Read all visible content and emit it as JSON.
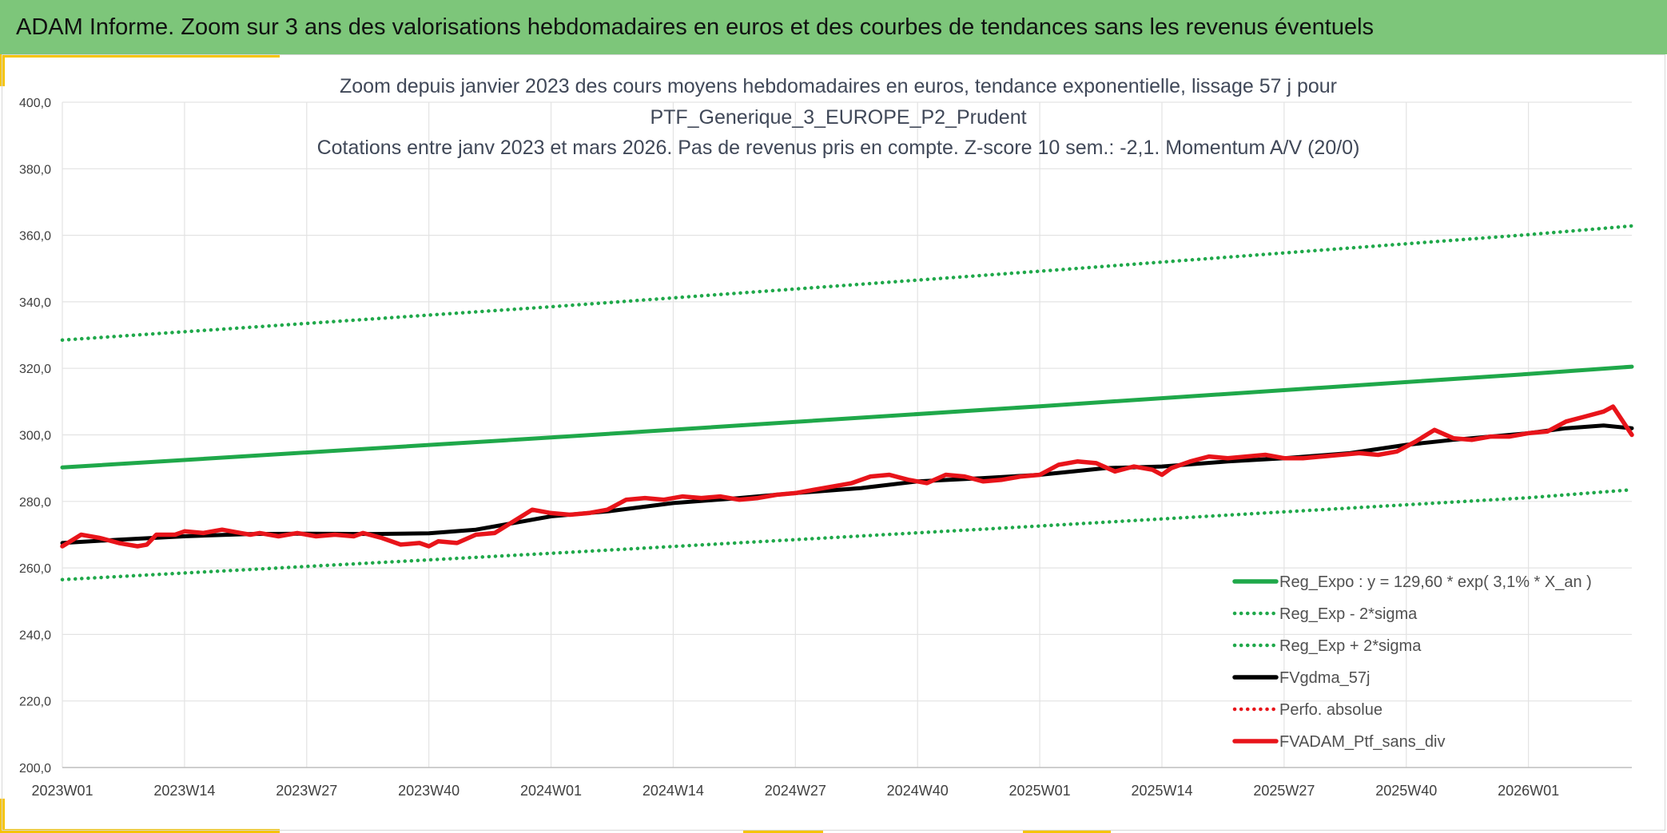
{
  "header": {
    "title": "ADAM Informe. Zoom sur 3 ans des valorisations hebdomadaires en euros et des courbes de tendances sans les revenus éventuels"
  },
  "colors": {
    "banner": "#7dc67a",
    "accent": "#f5c400",
    "trend_green": "#1fa84a",
    "band_green": "#1fa84a",
    "smooth_black": "#000000",
    "price_red": "#e8141a",
    "grid": "#e3e3e3"
  },
  "chart_data": {
    "type": "line",
    "title_lines": [
      "Zoom depuis janvier 2023 des cours moyens hebdomadaires en euros, tendance exponentielle, lissage 57 j pour",
      "PTF_Generique_3_EUROPE_P2_Prudent",
      "Cotations entre janv 2023 et mars 2026. Pas de revenus pris en compte. Z-score 10 sem.: -2,1. Momentum A/V (20/0)"
    ],
    "x_axis": {
      "week_start_index": 0,
      "week_end_index": 167,
      "tick_labels": [
        "2023W01",
        "2023W14",
        "2023W27",
        "2023W40",
        "2024W01",
        "2024W14",
        "2024W27",
        "2024W40",
        "2025W01",
        "2025W14",
        "2025W27",
        "2025W40",
        "2026W01"
      ],
      "tick_week_index": [
        0,
        13,
        26,
        39,
        52,
        65,
        78,
        91,
        104,
        117,
        130,
        143,
        156
      ]
    },
    "y_axis": {
      "ylim": [
        200,
        400
      ],
      "tick_values": [
        200,
        220,
        240,
        260,
        280,
        300,
        320,
        340,
        360,
        380,
        400
      ],
      "tick_labels": [
        "200,0",
        "220,0",
        "240,0",
        "260,0",
        "280,0",
        "300,0",
        "320,0",
        "340,0",
        "360,0",
        "380,0",
        "400,0"
      ]
    },
    "legend": {
      "position": "bottom-right",
      "entries": [
        {
          "name": "Reg_Expo : y = 129,60 * exp( 3,1% *  X_an )",
          "style": "solid",
          "color": "#1fa84a"
        },
        {
          "name": "Reg_Exp - 2*sigma",
          "style": "dotted",
          "color": "#1fa84a"
        },
        {
          "name": "Reg_Exp + 2*sigma",
          "style": "dotted",
          "color": "#1fa84a"
        },
        {
          "name": "FVgdma_57j",
          "style": "solid",
          "color": "#000000"
        },
        {
          "name": "Perfo. absolue",
          "style": "dotted",
          "color": "#e8141a"
        },
        {
          "name": "FVADAM_Ptf_sans_div",
          "style": "solid",
          "color": "#e8141a"
        }
      ]
    },
    "series": [
      {
        "name": "Reg_Expo : y = 129,60 * exp( 3,1% *  X_an )",
        "x": [
          0,
          52,
          104,
          156,
          167
        ],
        "values": [
          290.2,
          299.2,
          308.6,
          318.3,
          320.5
        ]
      },
      {
        "name": "Reg_Exp - 2*sigma",
        "x": [
          0,
          52,
          104,
          156,
          167
        ],
        "values": [
          256.5,
          264.4,
          272.6,
          281.1,
          283.5
        ]
      },
      {
        "name": "Reg_Exp + 2*sigma",
        "x": [
          0,
          52,
          104,
          156,
          167
        ],
        "values": [
          328.5,
          338.5,
          349.2,
          360.2,
          362.8
        ]
      },
      {
        "name": "FVgdma_57j",
        "x": [
          0,
          6,
          13,
          20,
          26,
          33,
          39,
          44,
          48,
          52,
          58,
          65,
          72,
          78,
          85,
          91,
          98,
          104,
          111,
          117,
          124,
          130,
          137,
          143,
          148,
          152,
          156,
          160,
          164,
          167
        ],
        "values": [
          267.5,
          268.5,
          269.5,
          270.2,
          270.3,
          270.2,
          270.4,
          271.5,
          273.5,
          275.5,
          277.0,
          279.5,
          281.0,
          282.5,
          284.0,
          286.0,
          287.0,
          288.0,
          290.0,
          290.5,
          292.0,
          293.0,
          294.5,
          297.0,
          298.5,
          299.5,
          300.5,
          302.0,
          302.8,
          302.0
        ]
      },
      {
        "name": "FVADAM_Ptf_sans_div",
        "x": [
          0,
          2,
          4,
          6,
          8,
          9,
          10,
          12,
          13,
          15,
          17,
          19,
          20,
          21,
          23,
          25,
          27,
          29,
          31,
          32,
          34,
          36,
          38,
          39,
          40,
          42,
          44,
          46,
          48,
          50,
          52,
          54,
          56,
          58,
          60,
          62,
          64,
          66,
          68,
          70,
          72,
          74,
          76,
          78,
          80,
          82,
          84,
          86,
          88,
          90,
          92,
          94,
          96,
          98,
          100,
          102,
          104,
          106,
          108,
          110,
          112,
          114,
          116,
          117,
          118,
          120,
          122,
          124,
          126,
          128,
          130,
          132,
          134,
          136,
          138,
          140,
          142,
          144,
          146,
          148,
          150,
          152,
          154,
          156,
          158,
          160,
          162,
          164,
          165,
          167
        ],
        "values": [
          266.5,
          270.0,
          269.0,
          267.5,
          266.5,
          267.0,
          270.0,
          270.0,
          271.0,
          270.5,
          271.5,
          270.5,
          270.0,
          270.5,
          269.5,
          270.5,
          269.5,
          270.0,
          269.5,
          270.5,
          269.0,
          267.0,
          267.5,
          266.5,
          268.0,
          267.5,
          270.0,
          270.5,
          274.0,
          277.5,
          276.5,
          276.0,
          276.5,
          277.5,
          280.5,
          281.0,
          280.5,
          281.5,
          281.0,
          281.5,
          280.5,
          281.0,
          282.0,
          282.5,
          283.5,
          284.5,
          285.5,
          287.5,
          288.0,
          286.5,
          285.5,
          288.0,
          287.5,
          286.0,
          286.5,
          287.5,
          288.0,
          291.0,
          292.0,
          291.5,
          289.0,
          290.5,
          289.5,
          288.0,
          290.0,
          292.0,
          293.5,
          293.0,
          293.5,
          294.0,
          293.0,
          293.0,
          293.5,
          294.0,
          294.5,
          294.0,
          295.0,
          298.0,
          301.5,
          299.0,
          298.5,
          299.5,
          299.5,
          300.5,
          301.0,
          304.0,
          305.5,
          307.0,
          308.5,
          300.0
        ]
      }
    ]
  }
}
